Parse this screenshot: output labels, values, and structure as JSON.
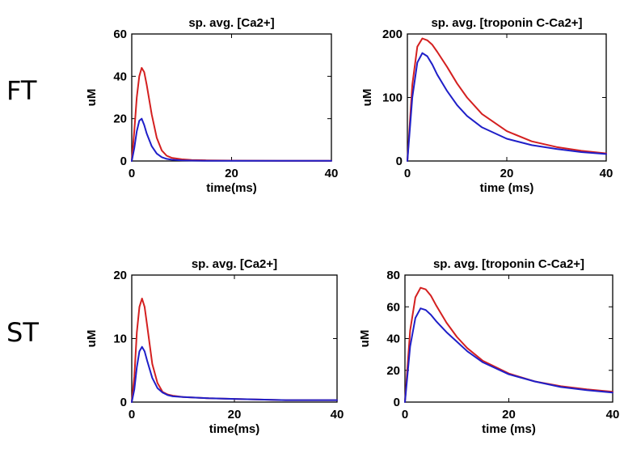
{
  "row_labels": [
    "FT",
    "ST"
  ],
  "colors": {
    "series_a": "#d42020",
    "series_b": "#1f1fc8"
  },
  "chart_data": [
    {
      "type": "line",
      "title": "sp. avg. [Ca2+]",
      "xlabel": "time(ms)",
      "ylabel": "uM",
      "xlim": [
        0,
        40
      ],
      "ylim": [
        0,
        60
      ],
      "xticks": [
        "0",
        "20",
        "40"
      ],
      "yticks": [
        "0",
        "20",
        "40",
        "60"
      ],
      "grid": false,
      "series": [
        {
          "color": "#d42020",
          "x": [
            0,
            0.5,
            1,
            1.5,
            2,
            2.5,
            3,
            4,
            5,
            6,
            7,
            8,
            10,
            12,
            15,
            20,
            30,
            40
          ],
          "y": [
            0,
            14,
            30,
            40,
            44,
            42,
            36,
            22,
            11,
            5,
            2.5,
            1.5,
            0.8,
            0.5,
            0.3,
            0.2,
            0.1,
            0.1
          ]
        },
        {
          "color": "#1f1fc8",
          "x": [
            0,
            0.5,
            1,
            1.5,
            2,
            2.5,
            3,
            4,
            5,
            6,
            7,
            8,
            10,
            12,
            15,
            20,
            30,
            40
          ],
          "y": [
            0,
            6,
            14,
            19,
            20,
            17,
            13,
            7,
            3.5,
            1.8,
            1,
            0.6,
            0.3,
            0.2,
            0.1,
            0.1,
            0.1,
            0.1
          ]
        }
      ]
    },
    {
      "type": "line",
      "title": "sp. avg. [troponin C-Ca2+]",
      "xlabel": "time (ms)",
      "ylabel": "uM",
      "xlim": [
        0,
        40
      ],
      "ylim": [
        0,
        200
      ],
      "xticks": [
        "0",
        "20",
        "40"
      ],
      "yticks": [
        "0",
        "100",
        "200"
      ],
      "grid": false,
      "series": [
        {
          "color": "#d42020",
          "x": [
            0,
            1,
            2,
            3,
            4,
            5,
            6,
            8,
            10,
            12,
            15,
            20,
            25,
            30,
            35,
            40
          ],
          "y": [
            0,
            120,
            180,
            193,
            190,
            183,
            172,
            148,
            122,
            100,
            74,
            47,
            31,
            22,
            16,
            12
          ]
        },
        {
          "color": "#1f1fc8",
          "x": [
            0,
            1,
            2,
            3,
            4,
            5,
            6,
            8,
            10,
            12,
            15,
            20,
            25,
            30,
            35,
            40
          ],
          "y": [
            0,
            100,
            155,
            170,
            165,
            152,
            136,
            110,
            88,
            71,
            53,
            35,
            25,
            19,
            14,
            11
          ]
        }
      ]
    },
    {
      "type": "line",
      "title": "sp. avg. [Ca2+]",
      "xlabel": "time(ms)",
      "ylabel": "uM",
      "xlim": [
        0,
        40
      ],
      "ylim": [
        0,
        20
      ],
      "xticks": [
        "0",
        "20",
        "40"
      ],
      "yticks": [
        "0",
        "10",
        "20"
      ],
      "grid": false,
      "series": [
        {
          "color": "#d42020",
          "x": [
            0,
            0.5,
            1,
            1.5,
            2,
            2.5,
            3,
            4,
            5,
            6,
            7,
            8,
            10,
            15,
            20,
            25,
            30,
            40
          ],
          "y": [
            0,
            4,
            11,
            15,
            16.3,
            15,
            12,
            6,
            3,
            1.6,
            1.2,
            1,
            0.8,
            0.6,
            0.5,
            0.4,
            0.3,
            0.3
          ]
        },
        {
          "color": "#1f1fc8",
          "x": [
            0,
            0.5,
            1,
            1.5,
            2,
            2.5,
            3,
            4,
            5,
            6,
            7,
            8,
            10,
            15,
            20,
            25,
            30,
            40
          ],
          "y": [
            0,
            2,
            5.5,
            8,
            8.7,
            8,
            6.5,
            3.8,
            2.2,
            1.5,
            1.1,
            0.9,
            0.8,
            0.6,
            0.5,
            0.4,
            0.3,
            0.3
          ]
        }
      ]
    },
    {
      "type": "line",
      "title": "sp. avg. [troponin C-Ca2+]",
      "xlabel": "time (ms)",
      "ylabel": "uM",
      "xlim": [
        0,
        40
      ],
      "ylim": [
        0,
        80
      ],
      "xticks": [
        "0",
        "20",
        "40"
      ],
      "yticks": [
        "0",
        "20",
        "40",
        "60",
        "80"
      ],
      "grid": false,
      "series": [
        {
          "color": "#d42020",
          "x": [
            0,
            1,
            2,
            3,
            4,
            5,
            6,
            8,
            10,
            12,
            15,
            20,
            25,
            30,
            35,
            40
          ],
          "y": [
            0,
            45,
            66,
            72,
            71,
            67,
            61,
            50,
            41,
            34,
            26,
            18,
            13,
            10,
            8,
            6.5
          ]
        },
        {
          "color": "#1f1fc8",
          "x": [
            0,
            1,
            2,
            3,
            4,
            5,
            6,
            8,
            10,
            12,
            15,
            20,
            25,
            30,
            35,
            40
          ],
          "y": [
            0,
            35,
            53,
            59,
            58,
            55,
            51,
            44,
            38,
            32,
            25,
            17.5,
            13,
            9.5,
            7.5,
            6
          ]
        }
      ]
    }
  ]
}
